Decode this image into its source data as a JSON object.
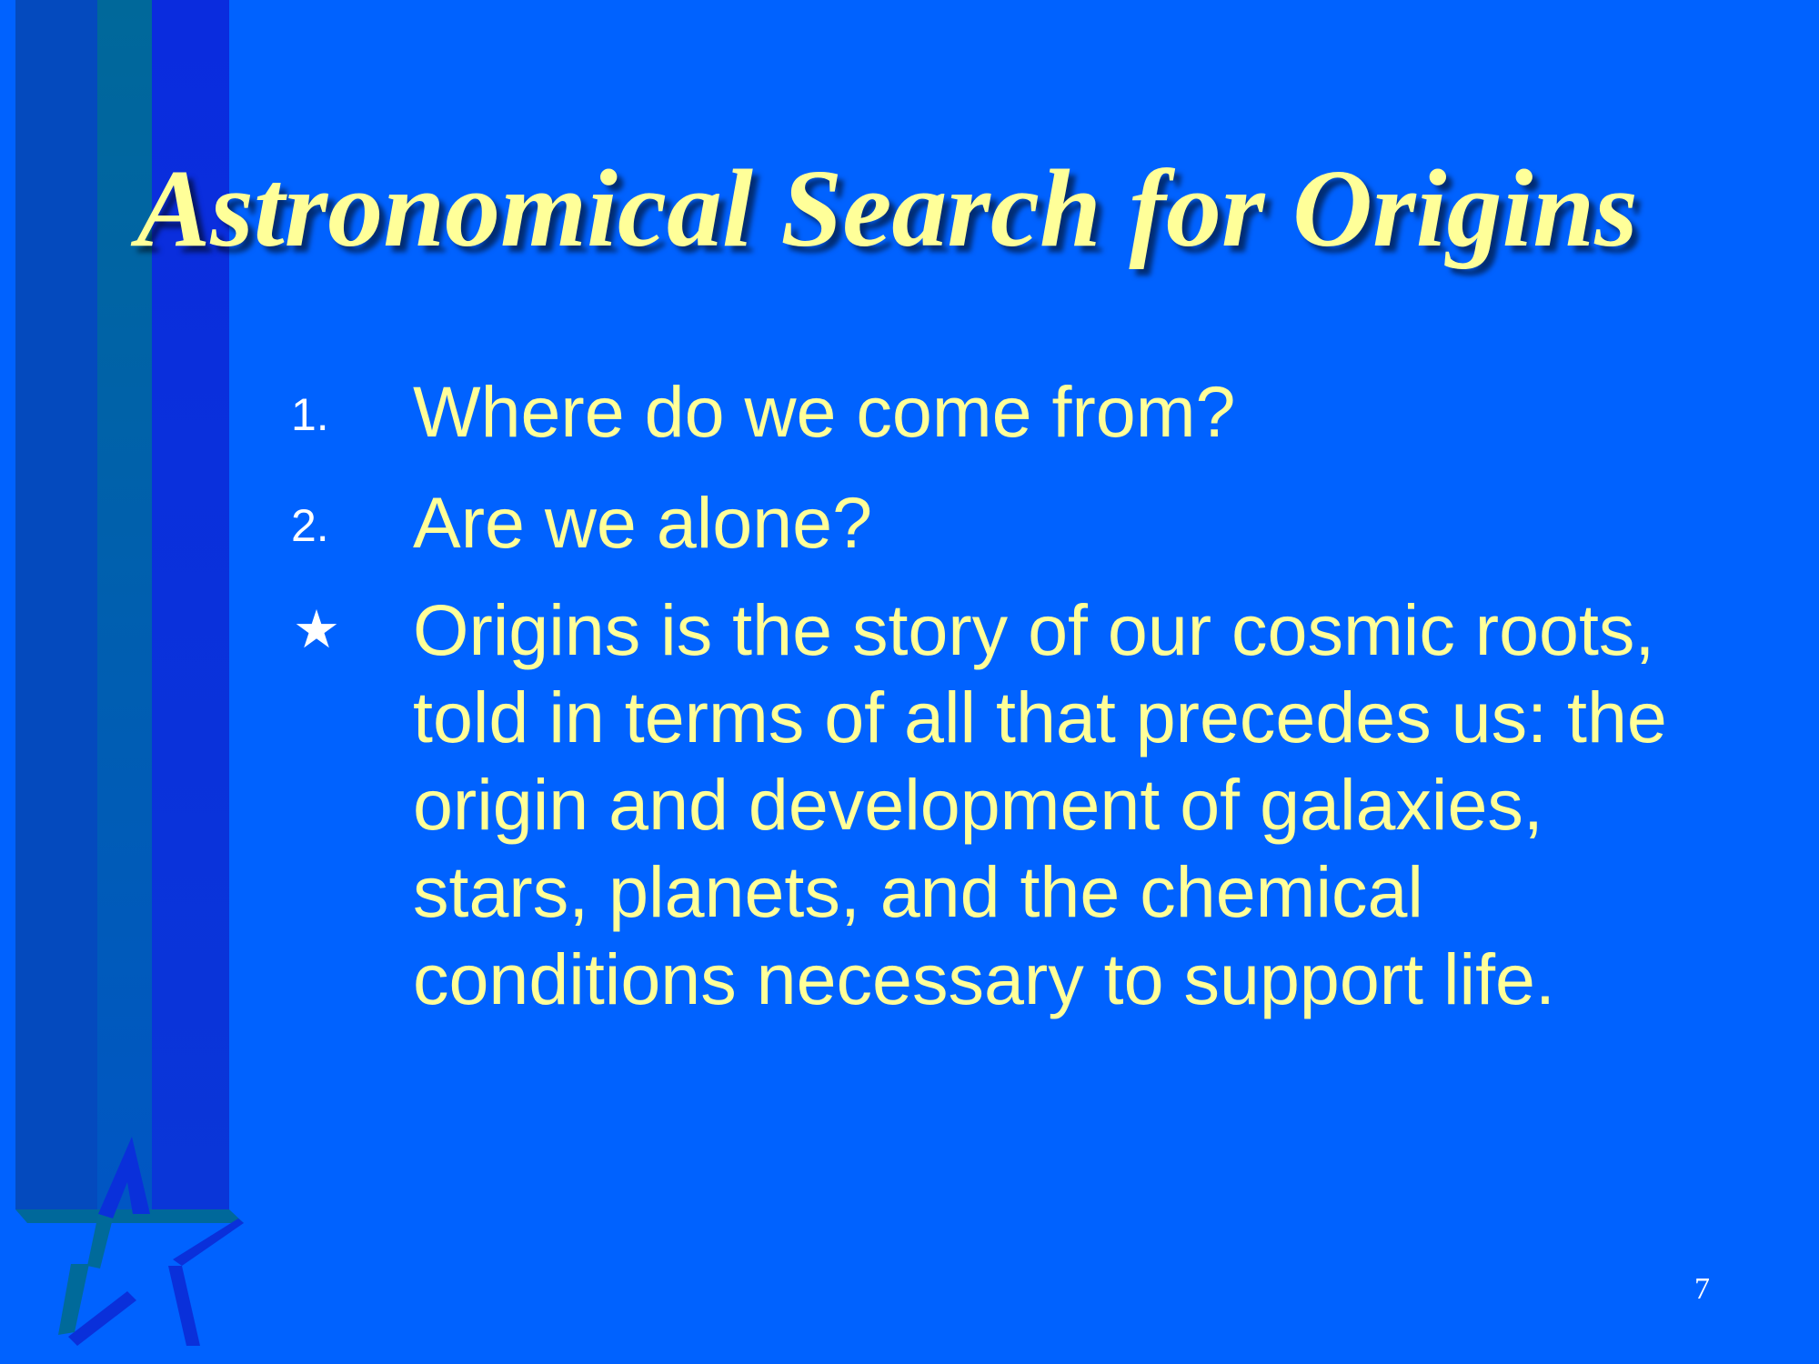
{
  "slide": {
    "title": "Astronomical Search for Origins",
    "items": [
      {
        "marker": "1.",
        "text": "Where do we come from?"
      },
      {
        "marker": "2.",
        "text": "Are we alone?"
      },
      {
        "marker": "★",
        "text": "Origins is the story of our cosmic roots, told in terms of all that precedes us: the origin and development of galaxies, stars, planets, and the chemical conditions necessary to support life."
      }
    ],
    "page_number": "7"
  },
  "colors": {
    "background": "#0062ff",
    "title_text": "#ffff99",
    "body_text": "#ffff99",
    "marker": "#ffffff",
    "stripe_dark_blue": "#0a2fdc",
    "stripe_teal": "#006a9a",
    "star_outline_blue": "#0a2fdc",
    "star_outline_teal": "#006a9a"
  },
  "icons": {
    "decorative": "star-stripes-icon",
    "bullet": "star-bullet-icon"
  }
}
